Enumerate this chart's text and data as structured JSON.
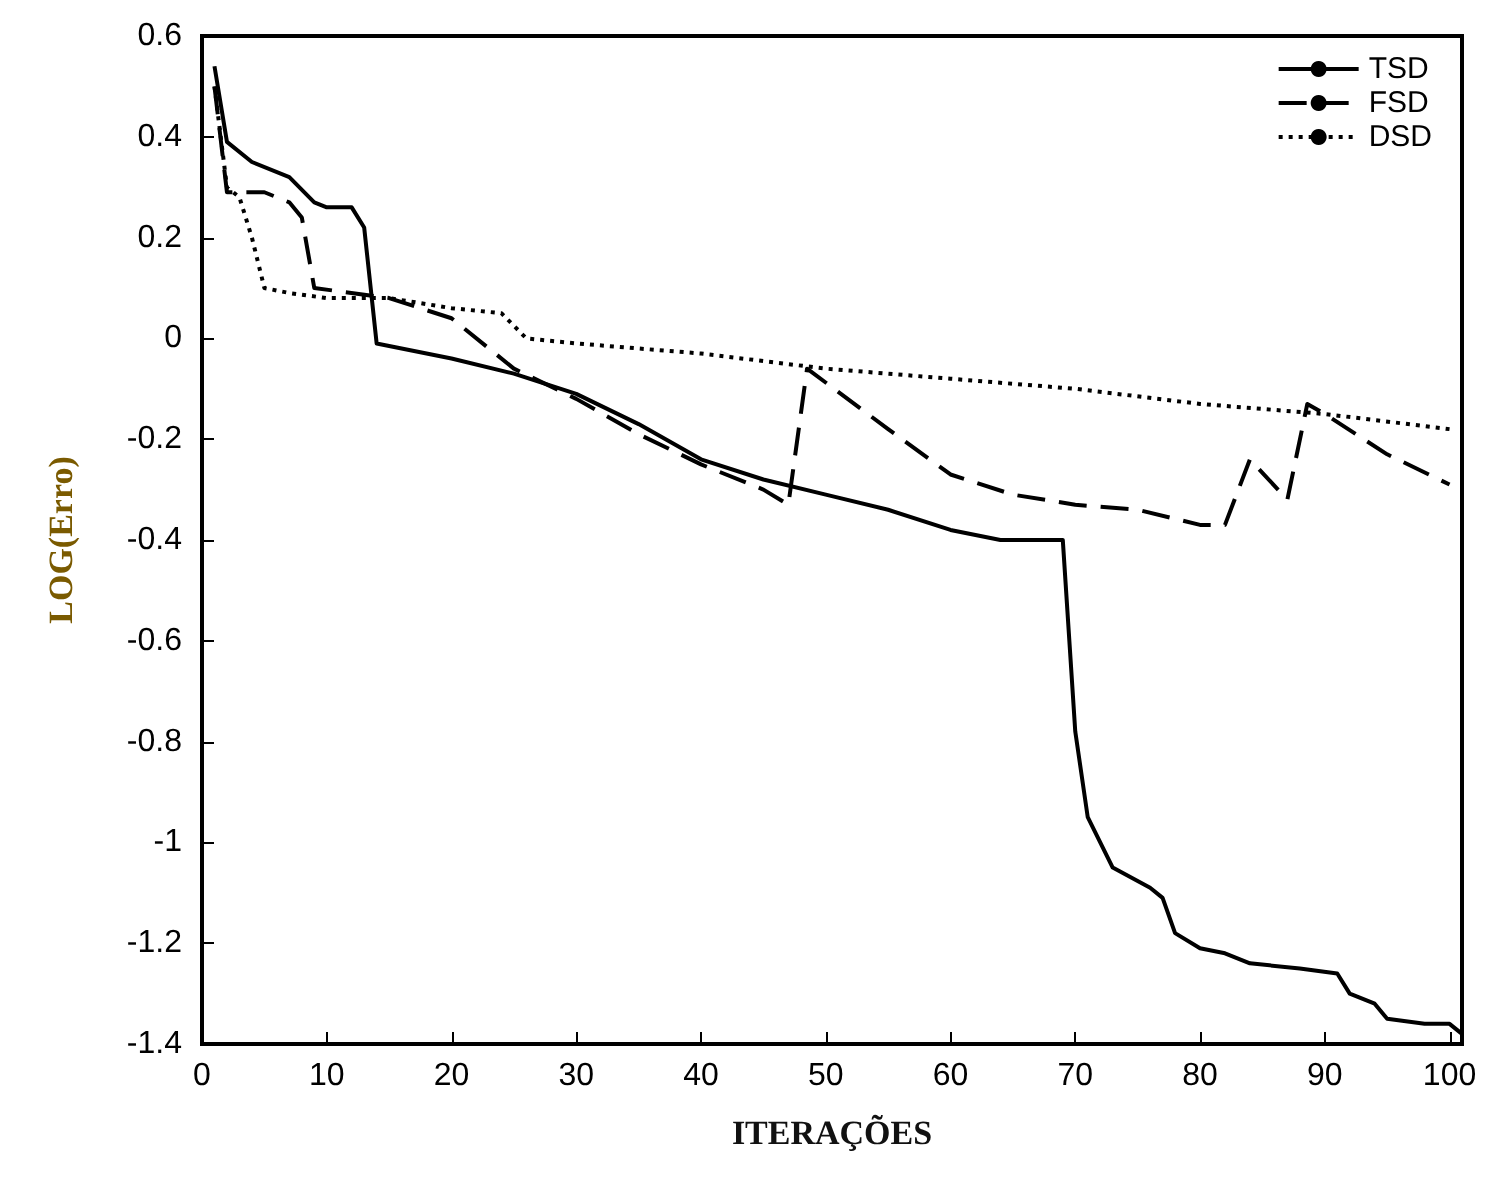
{
  "chart_data": {
    "type": "line",
    "xlabel": "ITERAÇÕES",
    "ylabel": "LOG(Erro)",
    "xlim": [
      0,
      101
    ],
    "xticks": [
      0,
      10,
      20,
      30,
      40,
      50,
      60,
      70,
      80,
      90,
      100
    ],
    "ylim": [
      -1.4,
      0.6
    ],
    "yticks": [
      -1.4,
      -1.2,
      -1,
      -0.8,
      -0.6,
      -0.4,
      -0.2,
      0,
      0.2,
      0.4,
      0.6
    ],
    "grid": false,
    "legend": "top right",
    "marker": "none",
    "series": [
      {
        "name": "TSD",
        "color": "#000000",
        "line_style": "solid",
        "x": [
          1,
          2,
          4,
          7,
          9,
          10,
          12,
          13,
          14,
          20,
          25,
          30,
          35,
          40,
          45,
          50,
          55,
          60,
          64,
          69,
          70,
          71,
          73,
          76,
          77,
          78,
          80,
          82,
          84,
          88,
          91,
          92,
          94,
          95,
          98,
          100,
          101
        ],
        "values": [
          0.54,
          0.39,
          0.35,
          0.32,
          0.27,
          0.26,
          0.26,
          0.22,
          -0.01,
          -0.04,
          -0.07,
          -0.11,
          -0.17,
          -0.24,
          -0.28,
          -0.31,
          -0.34,
          -0.38,
          -0.4,
          -0.4,
          -0.78,
          -0.95,
          -1.05,
          -1.09,
          -1.11,
          -1.18,
          -1.21,
          -1.22,
          -1.24,
          -1.25,
          -1.26,
          -1.3,
          -1.32,
          -1.35,
          -1.36,
          -1.36,
          -1.38
        ]
      },
      {
        "name": "FSD",
        "color": "#000000",
        "line_style": "dashed",
        "x": [
          1,
          2,
          5,
          7,
          8,
          9,
          15,
          20,
          25,
          30,
          35,
          40,
          45,
          47,
          48.5,
          55,
          60,
          65,
          70,
          75,
          80,
          82,
          84,
          87,
          88.6,
          90,
          95,
          100
        ],
        "values": [
          0.5,
          0.29,
          0.29,
          0.27,
          0.24,
          0.1,
          0.08,
          0.04,
          -0.06,
          -0.12,
          -0.19,
          -0.25,
          -0.3,
          -0.33,
          -0.06,
          -0.18,
          -0.27,
          -0.31,
          -0.33,
          -0.34,
          -0.37,
          -0.37,
          -0.24,
          -0.32,
          -0.13,
          -0.15,
          -0.23,
          -0.29
        ]
      },
      {
        "name": "DSD",
        "color": "#000000",
        "line_style": "dotted",
        "x": [
          1,
          2,
          3,
          4,
          5,
          7,
          10,
          15,
          20,
          24,
          26,
          30,
          40,
          50,
          60,
          70,
          80,
          90,
          100
        ],
        "values": [
          0.5,
          0.3,
          0.28,
          0.2,
          0.1,
          0.09,
          0.08,
          0.08,
          0.06,
          0.05,
          0.0,
          -0.01,
          -0.03,
          -0.06,
          -0.08,
          -0.1,
          -0.13,
          -0.15,
          -0.18
        ]
      }
    ]
  }
}
